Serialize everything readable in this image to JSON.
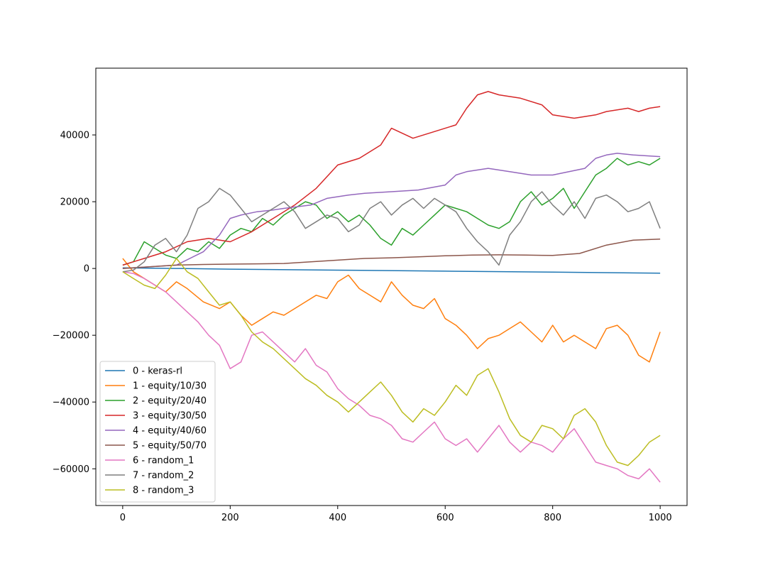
{
  "chart_data": {
    "type": "line",
    "title": "",
    "xlabel": "",
    "ylabel": "",
    "xlim": [
      -50,
      1050
    ],
    "ylim": [
      -71000,
      60000
    ],
    "xticks": [
      0,
      200,
      400,
      600,
      800,
      1000
    ],
    "yticks": [
      -60000,
      -40000,
      -20000,
      0,
      20000,
      40000
    ],
    "xtick_labels": [
      "0",
      "200",
      "400",
      "600",
      "800",
      "1000"
    ],
    "ytick_labels": [
      "−60000",
      "−40000",
      "−20000",
      "0",
      "20000",
      "40000"
    ],
    "legend_position": "lower-left",
    "grid": false,
    "series": [
      {
        "name": "0 - keras-rl",
        "color": "#1f77b4",
        "x": [
          0,
          100,
          200,
          400,
          600,
          800,
          1000
        ],
        "y": [
          200,
          0,
          -200,
          -500,
          -800,
          -1100,
          -1400
        ]
      },
      {
        "name": "1 - equity/10/30",
        "color": "#ff7f0e",
        "x": [
          0,
          20,
          40,
          60,
          80,
          100,
          120,
          150,
          180,
          200,
          220,
          240,
          260,
          280,
          300,
          320,
          340,
          360,
          380,
          400,
          420,
          440,
          460,
          480,
          500,
          520,
          540,
          560,
          580,
          600,
          620,
          640,
          660,
          680,
          700,
          720,
          740,
          760,
          780,
          800,
          820,
          840,
          860,
          880,
          900,
          920,
          940,
          960,
          980,
          1000
        ],
        "y": [
          3000,
          -1000,
          -3000,
          -5000,
          -7000,
          -4000,
          -6000,
          -10000,
          -12000,
          -10000,
          -14000,
          -17000,
          -15000,
          -13000,
          -14000,
          -12000,
          -10000,
          -8000,
          -9000,
          -4000,
          -2000,
          -6000,
          -8000,
          -10000,
          -4000,
          -8000,
          -11000,
          -12000,
          -9000,
          -15000,
          -17000,
          -20000,
          -24000,
          -21000,
          -20000,
          -18000,
          -16000,
          -19000,
          -22000,
          -17000,
          -22000,
          -20000,
          -22000,
          -24000,
          -18000,
          -17000,
          -20000,
          -26000,
          -28000,
          -19000
        ]
      },
      {
        "name": "2 - equity/20/40",
        "color": "#2ca02c",
        "x": [
          0,
          20,
          40,
          60,
          80,
          100,
          120,
          140,
          160,
          180,
          200,
          220,
          240,
          260,
          280,
          300,
          320,
          340,
          360,
          380,
          400,
          420,
          440,
          460,
          480,
          500,
          520,
          540,
          560,
          580,
          600,
          620,
          640,
          660,
          680,
          700,
          720,
          740,
          760,
          780,
          800,
          820,
          840,
          860,
          880,
          900,
          920,
          940,
          960,
          980,
          1000
        ],
        "y": [
          1000,
          2000,
          8000,
          6000,
          4000,
          3000,
          6000,
          5000,
          8000,
          6000,
          10000,
          12000,
          11000,
          15000,
          13000,
          16000,
          18000,
          20000,
          19000,
          15000,
          17000,
          14000,
          16000,
          13000,
          9000,
          7000,
          12000,
          10000,
          13000,
          16000,
          19000,
          18000,
          17000,
          15000,
          13000,
          12000,
          14000,
          20000,
          23000,
          19000,
          21000,
          24000,
          18000,
          23000,
          28000,
          30000,
          33000,
          31000,
          32000,
          31000,
          33000
        ]
      },
      {
        "name": "3 - equity/30/50",
        "color": "#d62728",
        "x": [
          0,
          20,
          40,
          80,
          120,
          160,
          200,
          240,
          280,
          320,
          360,
          400,
          440,
          480,
          500,
          540,
          580,
          620,
          640,
          660,
          680,
          700,
          740,
          780,
          800,
          840,
          880,
          900,
          940,
          960,
          980,
          1000
        ],
        "y": [
          1000,
          2000,
          3000,
          5000,
          8000,
          9000,
          8000,
          11000,
          15000,
          19000,
          24000,
          31000,
          33000,
          37000,
          42000,
          39000,
          41000,
          43000,
          48000,
          52000,
          53000,
          52000,
          51000,
          49000,
          46000,
          45000,
          46000,
          47000,
          48000,
          47000,
          48000,
          48500
        ]
      },
      {
        "name": "4 - equity/40/60",
        "color": "#9467bd",
        "x": [
          0,
          100,
          150,
          180,
          200,
          220,
          250,
          280,
          300,
          350,
          380,
          420,
          450,
          500,
          550,
          600,
          620,
          640,
          680,
          720,
          760,
          800,
          860,
          880,
          900,
          920,
          950,
          1000
        ],
        "y": [
          0,
          1000,
          5000,
          10000,
          15000,
          16000,
          17000,
          17500,
          18000,
          19000,
          21000,
          22000,
          22500,
          23000,
          23500,
          25000,
          28000,
          29000,
          30000,
          29000,
          28000,
          28000,
          30000,
          33000,
          34000,
          34500,
          34000,
          33500
        ]
      },
      {
        "name": "5 - equity/50/70",
        "color": "#8c564b",
        "x": [
          0,
          100,
          150,
          200,
          250,
          300,
          350,
          400,
          450,
          500,
          550,
          600,
          650,
          700,
          750,
          800,
          850,
          900,
          950,
          1000
        ],
        "y": [
          0,
          1000,
          1200,
          1300,
          1400,
          1500,
          2000,
          2500,
          3000,
          3200,
          3500,
          3800,
          4000,
          4100,
          4000,
          3900,
          4500,
          7000,
          8500,
          8800
        ]
      },
      {
        "name": "6 - random_1",
        "color": "#e377c2",
        "x": [
          0,
          20,
          40,
          60,
          80,
          100,
          120,
          140,
          160,
          180,
          200,
          220,
          240,
          260,
          280,
          300,
          320,
          340,
          360,
          380,
          400,
          420,
          440,
          460,
          480,
          500,
          520,
          540,
          560,
          580,
          600,
          620,
          640,
          660,
          680,
          700,
          720,
          740,
          760,
          780,
          800,
          820,
          840,
          860,
          880,
          900,
          920,
          940,
          960,
          980,
          1000
        ],
        "y": [
          -1000,
          -1500,
          -3000,
          -5000,
          -7000,
          -10000,
          -13000,
          -16000,
          -20000,
          -23000,
          -30000,
          -28000,
          -20000,
          -19000,
          -22000,
          -25000,
          -28000,
          -24000,
          -29000,
          -31000,
          -36000,
          -39000,
          -41000,
          -44000,
          -45000,
          -47000,
          -51000,
          -52000,
          -49000,
          -46000,
          -51000,
          -53000,
          -51000,
          -55000,
          -51000,
          -47000,
          -52000,
          -55000,
          -52000,
          -53000,
          -55000,
          -51000,
          -48000,
          -53000,
          -58000,
          -59000,
          -60000,
          -62000,
          -63000,
          -60000,
          -64000
        ]
      },
      {
        "name": "7 - random_2",
        "color": "#7f7f7f",
        "x": [
          0,
          20,
          40,
          60,
          80,
          100,
          120,
          140,
          160,
          180,
          200,
          220,
          240,
          260,
          280,
          300,
          320,
          340,
          360,
          380,
          400,
          420,
          440,
          460,
          480,
          500,
          520,
          540,
          560,
          580,
          600,
          620,
          640,
          660,
          680,
          700,
          720,
          740,
          760,
          780,
          800,
          820,
          840,
          860,
          880,
          900,
          920,
          940,
          960,
          980,
          1000
        ],
        "y": [
          -1000,
          -500,
          2000,
          7000,
          9000,
          5000,
          10000,
          18000,
          20000,
          24000,
          22000,
          18000,
          14000,
          16000,
          18000,
          20000,
          17000,
          12000,
          14000,
          16000,
          15000,
          11000,
          13000,
          18000,
          20000,
          16000,
          19000,
          21000,
          18000,
          21000,
          19000,
          17000,
          12000,
          8000,
          5000,
          1000,
          10000,
          14000,
          20000,
          23000,
          19000,
          16000,
          20000,
          15000,
          21000,
          22000,
          20000,
          17000,
          18000,
          20000,
          12000
        ]
      },
      {
        "name": "8 - random_3",
        "color": "#bcbd22",
        "x": [
          0,
          20,
          40,
          60,
          80,
          100,
          120,
          140,
          160,
          180,
          200,
          220,
          240,
          260,
          280,
          300,
          320,
          340,
          360,
          380,
          400,
          420,
          440,
          460,
          480,
          500,
          520,
          540,
          560,
          580,
          600,
          620,
          640,
          660,
          680,
          700,
          720,
          740,
          760,
          780,
          800,
          820,
          840,
          860,
          880,
          900,
          920,
          940,
          960,
          980,
          1000
        ],
        "y": [
          -1000,
          -3000,
          -5000,
          -6000,
          -2000,
          3000,
          -1000,
          -3000,
          -7000,
          -11000,
          -10000,
          -14000,
          -19000,
          -22000,
          -24000,
          -27000,
          -30000,
          -33000,
          -35000,
          -38000,
          -40000,
          -43000,
          -40000,
          -37000,
          -34000,
          -38000,
          -43000,
          -46000,
          -42000,
          -44000,
          -40000,
          -35000,
          -38000,
          -32000,
          -30000,
          -37000,
          -45000,
          -50000,
          -52000,
          -47000,
          -48000,
          -51000,
          -44000,
          -42000,
          -46000,
          -53000,
          -58000,
          -59000,
          -56000,
          -52000,
          -50000
        ]
      }
    ]
  }
}
